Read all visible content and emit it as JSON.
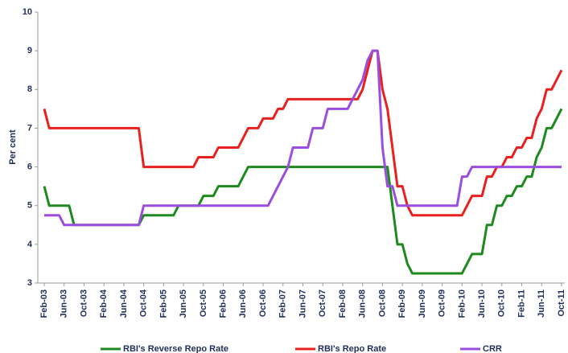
{
  "chart_data": {
    "type": "line",
    "y_label": "Per cent",
    "categories": [
      "Feb-03",
      null,
      null,
      null,
      "Jun-03",
      null,
      null,
      null,
      "Oct-03",
      null,
      null,
      null,
      "Feb-04",
      null,
      null,
      null,
      "Jun-04",
      null,
      null,
      null,
      "Oct-04",
      null,
      null,
      null,
      "Feb-05",
      null,
      null,
      null,
      "Jun-05",
      null,
      null,
      null,
      "Oct-05",
      null,
      null,
      null,
      "Feb-06",
      null,
      null,
      null,
      "Jun-06",
      null,
      null,
      null,
      "Oct-06",
      null,
      null,
      null,
      "Feb-07",
      null,
      null,
      null,
      "Jun-07",
      null,
      null,
      null,
      "Oct-07",
      null,
      null,
      null,
      "Feb-08",
      null,
      null,
      null,
      "Jun-08",
      null,
      null,
      null,
      "Oct-08",
      null,
      null,
      null,
      "Feb-09",
      null,
      null,
      null,
      "Jun-09",
      null,
      null,
      null,
      "Oct-09",
      null,
      null,
      null,
      "Feb-10",
      null,
      null,
      null,
      "Jun-10",
      null,
      null,
      null,
      "Oct-10",
      null,
      null,
      null,
      "Feb-11",
      null,
      null,
      null,
      "Jun-11",
      null,
      null,
      null,
      "Oct-11"
    ],
    "series": [
      {
        "name": "RBI's Reverse Repo Rate",
        "color": "#1e8a1e",
        "values": [
          5.5,
          5,
          5,
          5,
          5,
          5,
          4.5,
          4.5,
          4.5,
          4.5,
          4.5,
          4.5,
          4.5,
          4.5,
          4.5,
          4.5,
          4.5,
          4.5,
          4.5,
          4.5,
          4.75,
          4.75,
          4.75,
          4.75,
          4.75,
          4.75,
          4.75,
          5,
          5,
          5,
          5,
          5,
          5.25,
          5.25,
          5.25,
          5.5,
          5.5,
          5.5,
          5.5,
          5.5,
          5.75,
          6,
          6,
          6,
          6,
          6,
          6,
          6,
          6,
          6,
          6,
          6,
          6,
          6,
          6,
          6,
          6,
          6,
          6,
          6,
          6,
          6,
          6,
          6,
          6,
          6,
          6,
          6,
          6,
          6,
          5,
          4,
          4,
          3.5,
          3.25,
          3.25,
          3.25,
          3.25,
          3.25,
          3.25,
          3.25,
          3.25,
          3.25,
          3.25,
          3.25,
          3.5,
          3.75,
          3.75,
          3.75,
          4.5,
          4.5,
          5,
          5,
          5.25,
          5.25,
          5.5,
          5.5,
          5.75,
          5.75,
          6.25,
          6.5,
          7,
          7,
          7.25,
          7.5
        ]
      },
      {
        "name": "RBI's Repo Rate",
        "color": "#e8201e",
        "values": [
          7.5,
          7,
          7,
          7,
          7,
          7,
          7,
          7,
          7,
          7,
          7,
          7,
          7,
          7,
          7,
          7,
          7,
          7,
          7,
          7,
          6,
          6,
          6,
          6,
          6,
          6,
          6,
          6,
          6,
          6,
          6,
          6.25,
          6.25,
          6.25,
          6.25,
          6.5,
          6.5,
          6.5,
          6.5,
          6.5,
          6.75,
          7,
          7,
          7,
          7.25,
          7.25,
          7.25,
          7.5,
          7.5,
          7.75,
          7.75,
          7.75,
          7.75,
          7.75,
          7.75,
          7.75,
          7.75,
          7.75,
          7.75,
          7.75,
          7.75,
          7.75,
          7.75,
          7.75,
          8,
          8.5,
          9,
          9,
          8,
          7.5,
          6.5,
          5.5,
          5.5,
          5,
          4.75,
          4.75,
          4.75,
          4.75,
          4.75,
          4.75,
          4.75,
          4.75,
          4.75,
          4.75,
          4.75,
          5,
          5.25,
          5.25,
          5.25,
          5.75,
          5.75,
          6,
          6,
          6.25,
          6.25,
          6.5,
          6.5,
          6.75,
          6.75,
          7.25,
          7.5,
          8,
          8,
          8.25,
          8.5
        ]
      },
      {
        "name": "CRR",
        "color": "#9b4de0",
        "values": [
          4.75,
          4.75,
          4.75,
          4.75,
          4.5,
          4.5,
          4.5,
          4.5,
          4.5,
          4.5,
          4.5,
          4.5,
          4.5,
          4.5,
          4.5,
          4.5,
          4.5,
          4.5,
          4.5,
          4.5,
          5,
          5,
          5,
          5,
          5,
          5,
          5,
          5,
          5,
          5,
          5,
          5,
          5,
          5,
          5,
          5,
          5,
          5,
          5,
          5,
          5,
          5,
          5,
          5,
          5,
          5,
          5.25,
          5.5,
          5.75,
          6,
          6.5,
          6.5,
          6.5,
          6.5,
          7,
          7,
          7,
          7.5,
          7.5,
          7.5,
          7.5,
          7.5,
          7.75,
          8,
          8.25,
          8.75,
          9,
          9,
          6.5,
          5.5,
          5.5,
          5,
          5,
          5,
          5,
          5,
          5,
          5,
          5,
          5,
          5,
          5,
          5,
          5,
          5.75,
          5.75,
          6,
          6,
          6,
          6,
          6,
          6,
          6,
          6,
          6,
          6,
          6,
          6,
          6,
          6,
          6,
          6,
          6,
          6,
          6
        ]
      }
    ],
    "ylim": [
      3,
      10
    ],
    "yticks": [
      3,
      4,
      5,
      6,
      7,
      8,
      9,
      10
    ],
    "grid": false,
    "legend": "bottom"
  }
}
